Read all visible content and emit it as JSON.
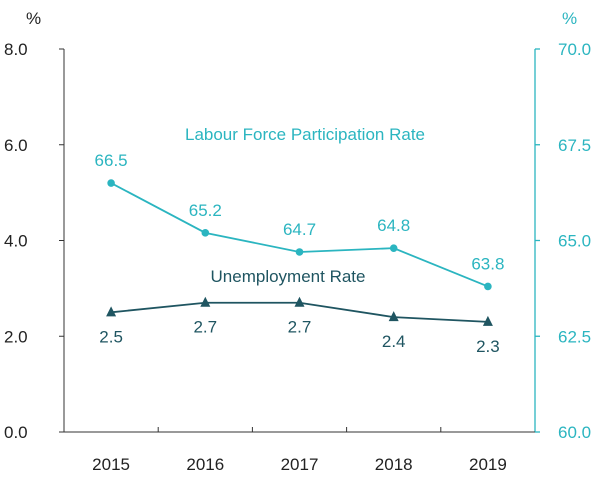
{
  "chart_data": {
    "type": "line",
    "categories": [
      "2015",
      "2016",
      "2017",
      "2018",
      "2019"
    ],
    "left_axis": {
      "unit": "%",
      "ticks": [
        "0.0",
        "2.0",
        "4.0",
        "6.0",
        "8.0"
      ],
      "ylim": [
        0,
        8
      ]
    },
    "right_axis": {
      "unit": "%",
      "ticks": [
        "60.0",
        "62.5",
        "65.0",
        "67.5",
        "70.0"
      ],
      "ylim": [
        60,
        70
      ]
    },
    "series": [
      {
        "name": "Labour Force Participation Rate",
        "axis": "right",
        "values": [
          66.5,
          65.2,
          64.7,
          64.8,
          63.8
        ],
        "labels": [
          "66.5",
          "65.2",
          "64.7",
          "64.8",
          "63.8"
        ],
        "color": "#2bb5c0",
        "marker": "circle"
      },
      {
        "name": "Unemployment Rate",
        "axis": "left",
        "values": [
          2.5,
          2.7,
          2.7,
          2.4,
          2.3
        ],
        "labels": [
          "2.5",
          "2.7",
          "2.7",
          "2.4",
          "2.3"
        ],
        "color": "#1f5561",
        "marker": "triangle"
      }
    ],
    "colors": {
      "left_axis": "#222222",
      "right_axis": "#2bb5c0"
    }
  }
}
